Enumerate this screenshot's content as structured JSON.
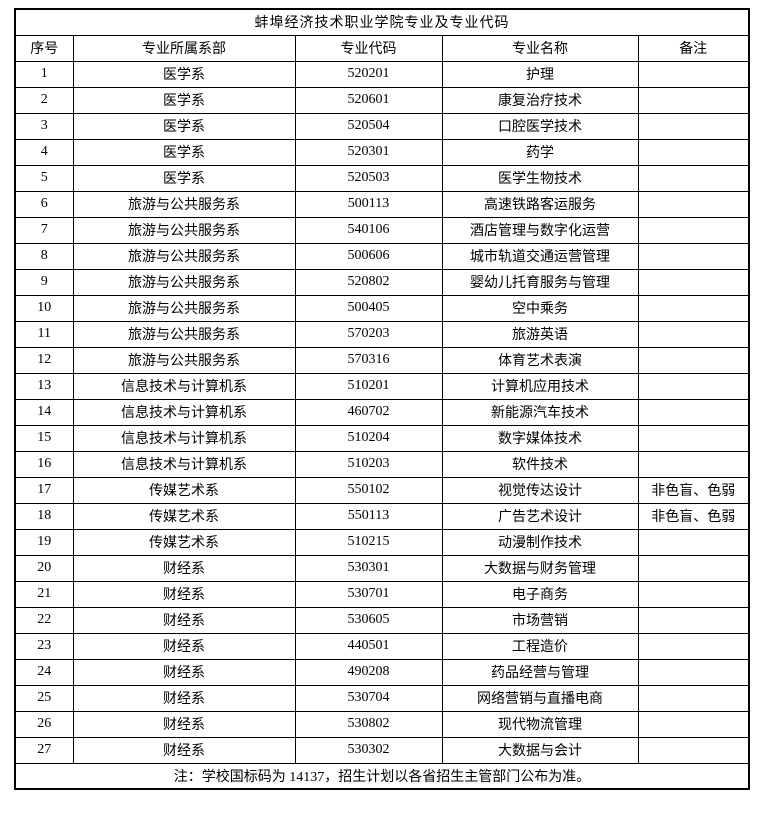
{
  "title": "蚌埠经济技术职业学院专业及专业代码",
  "columns": [
    "序号",
    "专业所属系部",
    "专业代码",
    "专业名称",
    "备注"
  ],
  "rows": [
    {
      "no": "1",
      "dept": "医学系",
      "code": "520201",
      "major": "护理",
      "note": ""
    },
    {
      "no": "2",
      "dept": "医学系",
      "code": "520601",
      "major": "康复治疗技术",
      "note": ""
    },
    {
      "no": "3",
      "dept": "医学系",
      "code": "520504",
      "major": "口腔医学技术",
      "note": ""
    },
    {
      "no": "4",
      "dept": "医学系",
      "code": "520301",
      "major": "药学",
      "note": ""
    },
    {
      "no": "5",
      "dept": "医学系",
      "code": "520503",
      "major": "医学生物技术",
      "note": ""
    },
    {
      "no": "6",
      "dept": "旅游与公共服务系",
      "code": "500113",
      "major": "高速铁路客运服务",
      "note": ""
    },
    {
      "no": "7",
      "dept": "旅游与公共服务系",
      "code": "540106",
      "major": "酒店管理与数字化运营",
      "note": ""
    },
    {
      "no": "8",
      "dept": "旅游与公共服务系",
      "code": "500606",
      "major": "城市轨道交通运营管理",
      "note": ""
    },
    {
      "no": "9",
      "dept": "旅游与公共服务系",
      "code": "520802",
      "major": "婴幼儿托育服务与管理",
      "note": ""
    },
    {
      "no": "10",
      "dept": "旅游与公共服务系",
      "code": "500405",
      "major": "空中乘务",
      "note": ""
    },
    {
      "no": "11",
      "dept": "旅游与公共服务系",
      "code": "570203",
      "major": "旅游英语",
      "note": ""
    },
    {
      "no": "12",
      "dept": "旅游与公共服务系",
      "code": "570316",
      "major": "体育艺术表演",
      "note": ""
    },
    {
      "no": "13",
      "dept": "信息技术与计算机系",
      "code": "510201",
      "major": "计算机应用技术",
      "note": ""
    },
    {
      "no": "14",
      "dept": "信息技术与计算机系",
      "code": "460702",
      "major": "新能源汽车技术",
      "note": ""
    },
    {
      "no": "15",
      "dept": "信息技术与计算机系",
      "code": "510204",
      "major": "数字媒体技术",
      "note": ""
    },
    {
      "no": "16",
      "dept": "信息技术与计算机系",
      "code": "510203",
      "major": "软件技术",
      "note": ""
    },
    {
      "no": "17",
      "dept": "传媒艺术系",
      "code": "550102",
      "major": "视觉传达设计",
      "note": "非色盲、色弱"
    },
    {
      "no": "18",
      "dept": "传媒艺术系",
      "code": "550113",
      "major": "广告艺术设计",
      "note": "非色盲、色弱"
    },
    {
      "no": "19",
      "dept": "传媒艺术系",
      "code": "510215",
      "major": "动漫制作技术",
      "note": ""
    },
    {
      "no": "20",
      "dept": "财经系",
      "code": "530301",
      "major": "大数据与财务管理",
      "note": ""
    },
    {
      "no": "21",
      "dept": "财经系",
      "code": "530701",
      "major": "电子商务",
      "note": ""
    },
    {
      "no": "22",
      "dept": "财经系",
      "code": "530605",
      "major": "市场营销",
      "note": ""
    },
    {
      "no": "23",
      "dept": "财经系",
      "code": "440501",
      "major": "工程造价",
      "note": ""
    },
    {
      "no": "24",
      "dept": "财经系",
      "code": "490208",
      "major": "药品经营与管理",
      "note": ""
    },
    {
      "no": "25",
      "dept": "财经系",
      "code": "530704",
      "major": "网络营销与直播电商",
      "note": ""
    },
    {
      "no": "26",
      "dept": "财经系",
      "code": "530802",
      "major": "现代物流管理",
      "note": ""
    },
    {
      "no": "27",
      "dept": "财经系",
      "code": "530302",
      "major": "大数据与会计",
      "note": ""
    }
  ],
  "footnote": "注：学校国标码为 14137，招生计划以各省招生主管部门公布为准。"
}
